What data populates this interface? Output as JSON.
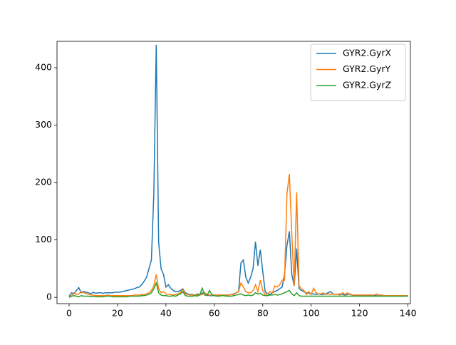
{
  "chart_data": {
    "type": "line",
    "x": [
      0,
      1,
      2,
      3,
      4,
      5,
      6,
      7,
      8,
      9,
      10,
      11,
      12,
      13,
      14,
      15,
      16,
      17,
      18,
      19,
      20,
      21,
      22,
      23,
      24,
      25,
      26,
      27,
      28,
      29,
      30,
      31,
      32,
      33,
      34,
      35,
      36,
      37,
      38,
      39,
      40,
      41,
      42,
      43,
      44,
      45,
      46,
      47,
      48,
      49,
      50,
      51,
      52,
      53,
      54,
      55,
      56,
      57,
      58,
      59,
      60,
      61,
      62,
      63,
      64,
      65,
      66,
      67,
      68,
      69,
      70,
      71,
      72,
      73,
      74,
      75,
      76,
      77,
      78,
      79,
      80,
      81,
      82,
      83,
      84,
      85,
      86,
      87,
      88,
      89,
      90,
      91,
      92,
      93,
      94,
      95,
      96,
      97,
      98,
      99,
      100,
      101,
      102,
      103,
      104,
      105,
      106,
      107,
      108,
      109,
      110,
      111,
      112,
      113,
      114,
      115,
      116,
      117,
      118,
      119,
      120,
      121,
      122,
      123,
      124,
      125,
      126,
      127,
      128,
      129,
      130,
      131,
      132,
      133,
      134,
      135,
      136,
      137,
      138,
      139,
      140
    ],
    "series": [
      {
        "name": "GYR2.GyrX",
        "color": "#1f77b4",
        "values": [
          2,
          8,
          6,
          12,
          17,
          8,
          10,
          9,
          8,
          6,
          9,
          7,
          8,
          8,
          7,
          8,
          8,
          8,
          8,
          9,
          9,
          9,
          10,
          11,
          12,
          13,
          14,
          15,
          17,
          18,
          22,
          28,
          35,
          50,
          65,
          180,
          440,
          95,
          50,
          40,
          18,
          22,
          16,
          12,
          10,
          10,
          12,
          15,
          8,
          6,
          5,
          5,
          4,
          6,
          4,
          8,
          5,
          4,
          3,
          3,
          3,
          3,
          3,
          3,
          3,
          3,
          4,
          5,
          6,
          8,
          10,
          60,
          65,
          35,
          25,
          35,
          50,
          97,
          55,
          83,
          45,
          10,
          6,
          5,
          8,
          10,
          12,
          15,
          18,
          40,
          90,
          115,
          40,
          20,
          85,
          15,
          12,
          10,
          8,
          7,
          6,
          6,
          5,
          6,
          5,
          5,
          6,
          8,
          10,
          6,
          5,
          5,
          6,
          5,
          4,
          5,
          6,
          4,
          3,
          3,
          3,
          3,
          2,
          3,
          3,
          2,
          3,
          3,
          2,
          3,
          3,
          2,
          3,
          3,
          2,
          3,
          3,
          2,
          3,
          3,
          2
        ]
      },
      {
        "name": "GYR2.GyrY",
        "color": "#ff7f0e",
        "values": [
          0,
          3,
          8,
          5,
          6,
          10,
          8,
          7,
          5,
          4,
          4,
          3,
          3,
          3,
          3,
          3,
          4,
          3,
          3,
          3,
          3,
          3,
          3,
          3,
          3,
          3,
          3,
          4,
          4,
          4,
          5,
          5,
          6,
          8,
          12,
          20,
          40,
          15,
          8,
          10,
          6,
          5,
          5,
          4,
          5,
          6,
          8,
          14,
          6,
          5,
          4,
          4,
          4,
          4,
          4,
          5,
          8,
          5,
          4,
          4,
          4,
          4,
          4,
          4,
          4,
          4,
          4,
          5,
          5,
          8,
          10,
          25,
          18,
          10,
          8,
          8,
          12,
          22,
          10,
          30,
          12,
          5,
          6,
          10,
          8,
          20,
          18,
          22,
          30,
          30,
          180,
          215,
          110,
          20,
          183,
          20,
          15,
          12,
          5,
          10,
          5,
          16,
          8,
          6,
          6,
          8,
          5,
          6,
          5,
          6,
          5,
          5,
          4,
          8,
          5,
          8,
          5,
          4,
          4,
          4,
          4,
          4,
          4,
          4,
          4,
          4,
          4,
          6,
          4,
          4,
          3,
          3,
          3,
          3,
          3,
          3,
          3,
          3,
          3,
          3,
          3
        ]
      },
      {
        "name": "GYR2.GyrZ",
        "color": "#2ca02c",
        "values": [
          0,
          2,
          3,
          2,
          1,
          3,
          2,
          2,
          2,
          1,
          2,
          1,
          1,
          1,
          1,
          2,
          2,
          2,
          1,
          1,
          1,
          1,
          1,
          1,
          1,
          2,
          2,
          2,
          2,
          2,
          3,
          3,
          4,
          5,
          8,
          15,
          25,
          8,
          4,
          3,
          3,
          2,
          2,
          3,
          2,
          4,
          6,
          10,
          3,
          2,
          2,
          2,
          3,
          2,
          5,
          16,
          4,
          3,
          12,
          5,
          3,
          2,
          2,
          3,
          3,
          2,
          2,
          2,
          3,
          4,
          5,
          6,
          4,
          3,
          4,
          3,
          4,
          8,
          6,
          7,
          4,
          3,
          3,
          4,
          4,
          5,
          4,
          5,
          6,
          8,
          10,
          12,
          6,
          3,
          8,
          3,
          2,
          2,
          2,
          2,
          2,
          2,
          2,
          2,
          2,
          2,
          2,
          2,
          2,
          2,
          2,
          2,
          2,
          2,
          2,
          2,
          2,
          2,
          2,
          2,
          2,
          2,
          2,
          2,
          2,
          2,
          2,
          2,
          2,
          2,
          2,
          2,
          2,
          2,
          2,
          2,
          2,
          2,
          2,
          2,
          2
        ]
      }
    ],
    "xlim": [
      -5,
      141
    ],
    "xticks": [
      0,
      20,
      40,
      60,
      80,
      100,
      120,
      140
    ],
    "ylim": [
      -11,
      446
    ],
    "yticks": [
      0,
      100,
      200,
      300,
      400
    ],
    "legend": "upper right"
  }
}
